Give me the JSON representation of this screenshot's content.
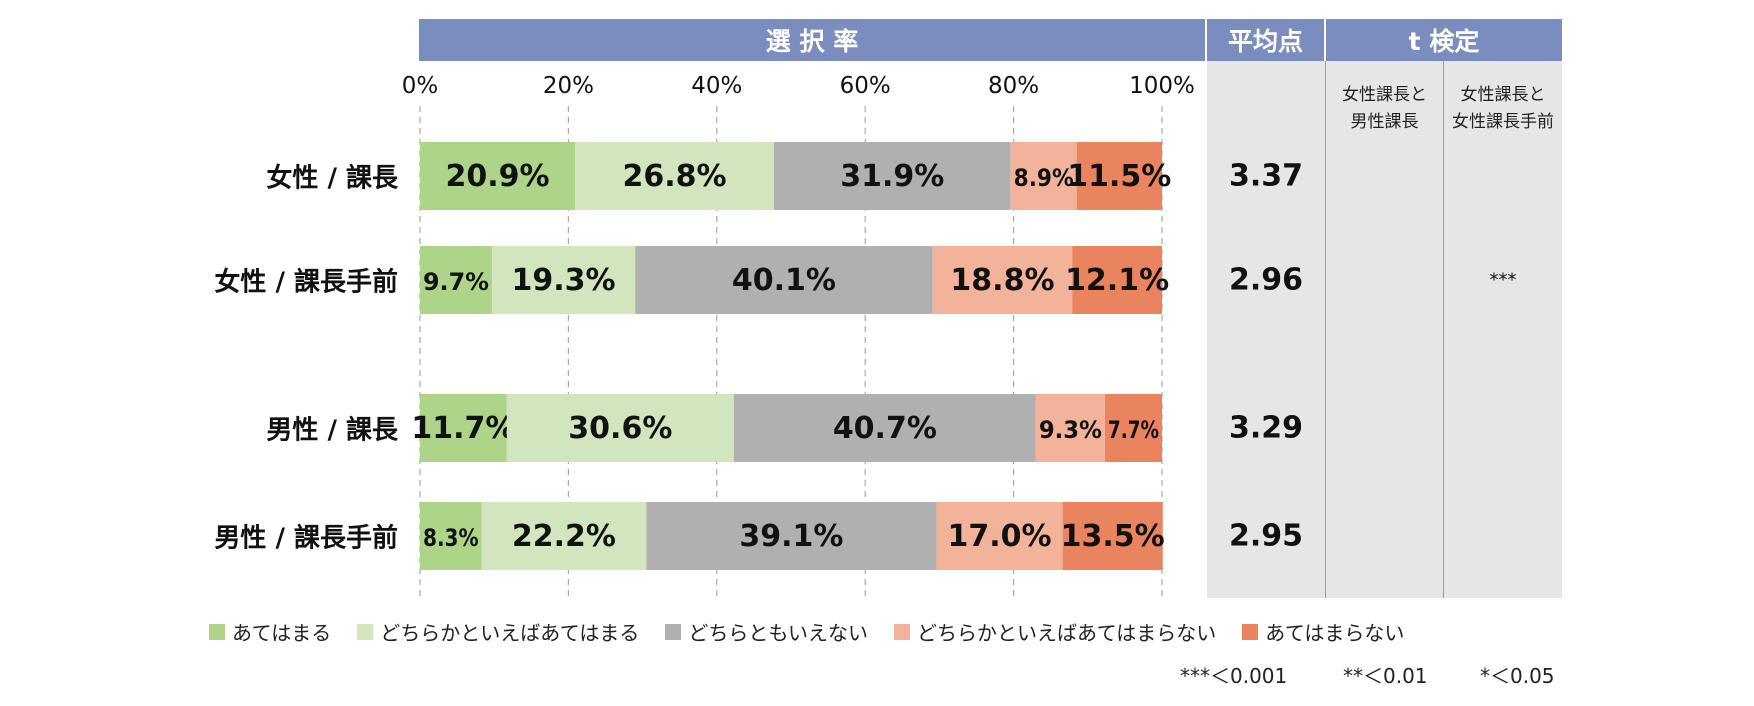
{
  "header": {
    "selection_rate": "選 択 率",
    "average": "平均点",
    "t_test": "t 検定"
  },
  "t_test_columns": [
    "女性課長と\n男性課長",
    "女性課長と\n女性課長手前"
  ],
  "chart_data": {
    "type": "bar",
    "orientation": "horizontal",
    "stacked": true,
    "xlim": [
      0,
      100
    ],
    "x_ticks": [
      "0%",
      "20%",
      "40%",
      "60%",
      "80%",
      "100%"
    ],
    "categories": [
      "女性 / 課長",
      "女性 / 課長手前",
      "男性 / 課長",
      "男性 / 課長手前"
    ],
    "series": [
      {
        "name": "あてはまる",
        "color": "#aed48a",
        "values": [
          20.9,
          9.7,
          11.7,
          8.3
        ]
      },
      {
        "name": "どちらかといえばあてはまる",
        "color": "#d2e5bf",
        "values": [
          26.8,
          19.3,
          30.6,
          22.2
        ]
      },
      {
        "name": "どちらともいえない",
        "color": "#b0b0b0",
        "values": [
          31.9,
          40.1,
          40.7,
          39.1
        ]
      },
      {
        "name": "どちらかといえばあてはまらない",
        "color": "#f2b39a",
        "values": [
          8.9,
          18.8,
          9.3,
          17.0
        ]
      },
      {
        "name": "あてはまらない",
        "color": "#e9845f",
        "values": [
          11.5,
          12.1,
          7.7,
          13.5
        ]
      }
    ],
    "data_labels": [
      [
        "20.9%",
        "26.8%",
        "31.9%",
        "8.9%",
        "11.5%"
      ],
      [
        "9.7%",
        "19.3%",
        "40.1%",
        "18.8%",
        "12.1%"
      ],
      [
        "11.7%",
        "30.6%",
        "40.7%",
        "9.3%",
        "7.7%"
      ],
      [
        "8.3%",
        "22.2%",
        "39.1%",
        "17.0%",
        "13.5%"
      ]
    ],
    "grid": true,
    "legend_position": "bottom"
  },
  "averages": [
    "3.37",
    "2.96",
    "3.29",
    "2.95"
  ],
  "significance": [
    "",
    "***",
    "",
    ""
  ],
  "notes": [
    "***＜0.001",
    "**＜0.01",
    "*＜0.05"
  ]
}
